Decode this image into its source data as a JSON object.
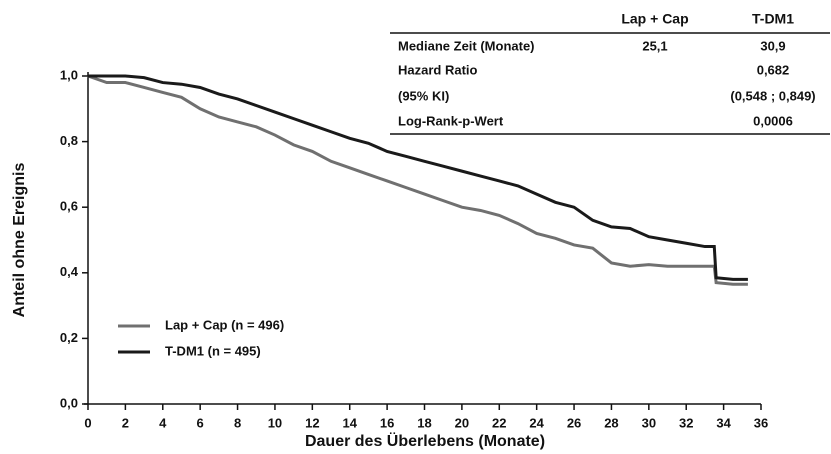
{
  "chart_data": {
    "type": "line",
    "xlabel": "Dauer des Überlebens (Monate)",
    "ylabel": "Anteil ohne Ereignis",
    "xlim": [
      0,
      36
    ],
    "ylim": [
      0,
      1
    ],
    "xticks": [
      0,
      2,
      4,
      6,
      8,
      10,
      12,
      14,
      16,
      18,
      20,
      22,
      24,
      26,
      28,
      30,
      32,
      34,
      36
    ],
    "yticks": [
      {
        "value": 0,
        "label": "0,0"
      },
      {
        "value": 0.2,
        "label": "0,2"
      },
      {
        "value": 0.4,
        "label": "0,4"
      },
      {
        "value": 0.6,
        "label": "0,6"
      },
      {
        "value": 0.8,
        "label": "0,8"
      },
      {
        "value": 1,
        "label": "1,0"
      }
    ],
    "legend": "lower-left",
    "series": [
      {
        "name": "Lap + Cap (n = 496)",
        "color": "#707070",
        "x": [
          0,
          1,
          2,
          3,
          4,
          5,
          6,
          7,
          8,
          9,
          10,
          11,
          12,
          13,
          14,
          15,
          16,
          17,
          18,
          19,
          20,
          21,
          22,
          23,
          24,
          25,
          26,
          27,
          28,
          29,
          30,
          31,
          32,
          33,
          33.5,
          33.6,
          34.5,
          35.3
        ],
        "values": [
          1.0,
          0.98,
          0.98,
          0.965,
          0.95,
          0.935,
          0.9,
          0.875,
          0.86,
          0.845,
          0.82,
          0.79,
          0.77,
          0.74,
          0.72,
          0.7,
          0.68,
          0.66,
          0.64,
          0.62,
          0.6,
          0.59,
          0.575,
          0.55,
          0.52,
          0.505,
          0.485,
          0.475,
          0.43,
          0.42,
          0.425,
          0.42,
          0.42,
          0.42,
          0.42,
          0.37,
          0.365,
          0.365
        ]
      },
      {
        "name": "T-DM1 (n = 495)",
        "color": "#1a1a1a",
        "x": [
          0,
          2,
          3,
          4,
          5,
          6,
          7,
          8,
          9,
          10,
          11,
          12,
          13,
          14,
          15,
          16,
          17,
          18,
          19,
          20,
          21,
          22,
          23,
          24,
          25,
          26,
          27,
          28,
          29,
          30,
          31,
          32,
          33,
          33.5,
          33.6,
          34.5,
          35.3
        ],
        "values": [
          1.0,
          1.0,
          0.995,
          0.98,
          0.975,
          0.965,
          0.945,
          0.93,
          0.91,
          0.89,
          0.87,
          0.85,
          0.83,
          0.81,
          0.795,
          0.77,
          0.755,
          0.74,
          0.725,
          0.71,
          0.695,
          0.68,
          0.665,
          0.64,
          0.615,
          0.6,
          0.56,
          0.54,
          0.535,
          0.51,
          0.5,
          0.49,
          0.48,
          0.48,
          0.385,
          0.38,
          0.38
        ]
      }
    ],
    "table": {
      "columns": [
        "Lap + Cap",
        "T-DM1"
      ],
      "rows": [
        [
          "Mediane Zeit (Monate)",
          "25,1",
          "30,9"
        ],
        [
          "Hazard Ratio",
          "0,682"
        ],
        [
          "(95% KI)",
          "(0,548 ; 0,849)"
        ],
        [
          "Log-Rank-p-Wert",
          "0,0006"
        ]
      ]
    }
  }
}
